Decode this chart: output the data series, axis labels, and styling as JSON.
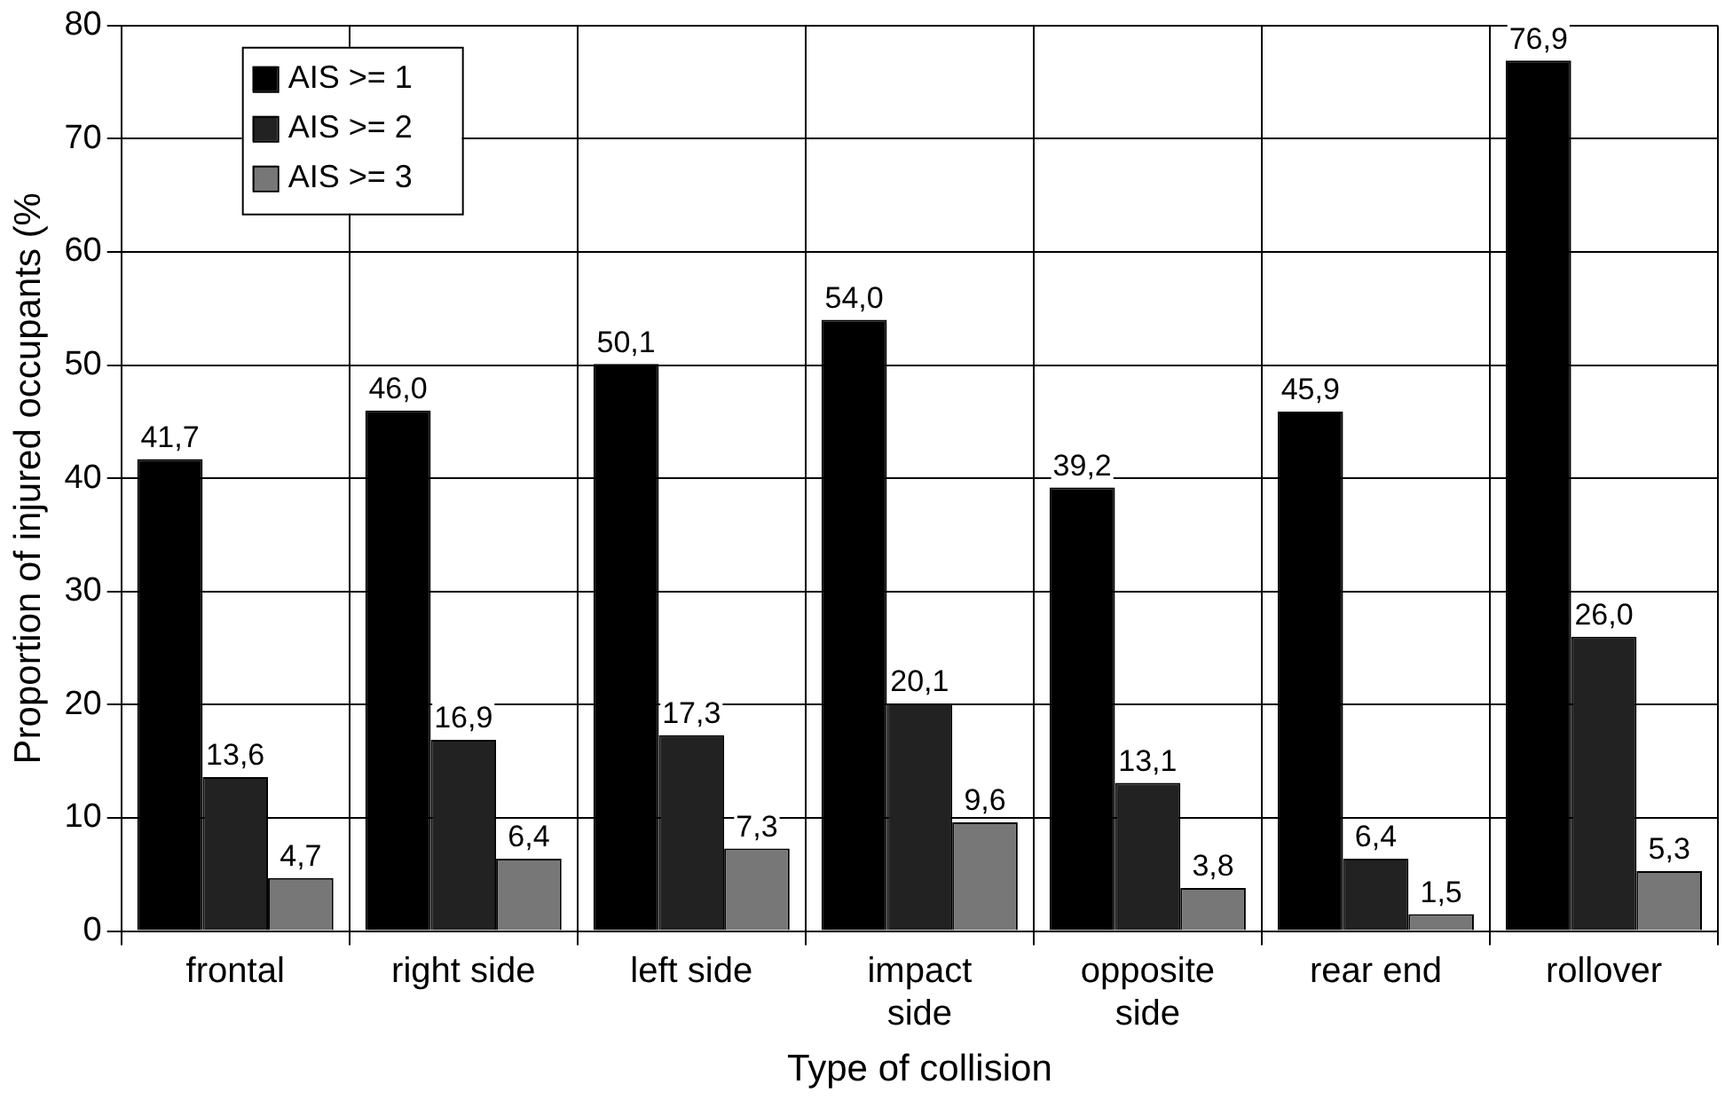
{
  "chart_data": {
    "type": "bar",
    "xlabel": "Type of collision",
    "ylabel": "Proportion of injured occupants (%",
    "categories": [
      "frontal",
      "right side",
      "left side",
      "impact side",
      "opposite side",
      "rear end",
      "rollover"
    ],
    "series": [
      {
        "name": "AIS >= 1",
        "color": "#000000",
        "values": [
          41.7,
          46.0,
          50.1,
          54.0,
          39.2,
          45.9,
          76.9
        ],
        "value_labels": [
          "41,7",
          "46,0",
          "50,1",
          "54,0",
          "39,2",
          "45,9",
          "76,9"
        ]
      },
      {
        "name": "AIS >= 2",
        "color": "#222222",
        "values": [
          13.6,
          16.9,
          17.3,
          20.1,
          13.1,
          6.4,
          26.0
        ],
        "value_labels": [
          "13,6",
          "16,9",
          "17,3",
          "20,1",
          "13,1",
          "6,4",
          "26,0"
        ]
      },
      {
        "name": "AIS >= 3",
        "color": "#777777",
        "values": [
          4.7,
          6.4,
          7.3,
          9.6,
          3.8,
          1.5,
          5.3
        ],
        "value_labels": [
          "4,7",
          "6,4",
          "7,3",
          "9,6",
          "3,8",
          "1,5",
          "5,3"
        ]
      }
    ],
    "ylim": [
      0,
      80
    ],
    "yticks": [
      0,
      10,
      20,
      30,
      40,
      50,
      60,
      70,
      80
    ],
    "grid": true,
    "legend": "top left"
  }
}
